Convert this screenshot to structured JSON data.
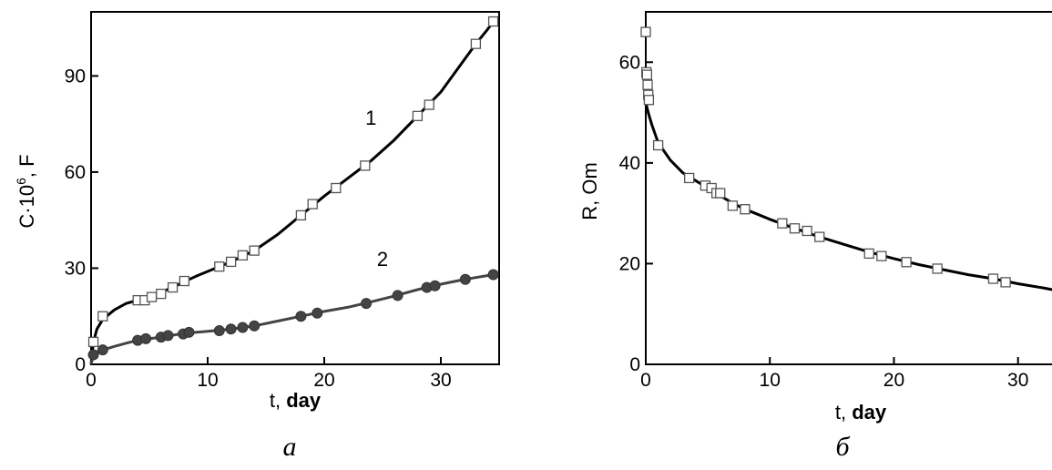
{
  "chart_data": [
    {
      "type": "line",
      "panel_label": "а",
      "xlabel": "t, ",
      "xlabel_unit": "day",
      "ylabel": "C·10",
      "ylabel_sup": "6",
      "ylabel_unit": ", F",
      "xlim": [
        0,
        35
      ],
      "ylim": [
        0,
        110
      ],
      "xticks": [
        0,
        10,
        20,
        30
      ],
      "yticks": [
        0,
        30,
        60,
        90
      ],
      "grid": false,
      "series": [
        {
          "name": "1",
          "marker": "open-square",
          "color": "#000000",
          "points": [
            [
              0.2,
              7
            ],
            [
              1,
              15
            ],
            [
              4,
              20
            ],
            [
              4.6,
              20
            ],
            [
              5.2,
              21
            ],
            [
              6,
              22
            ],
            [
              7,
              24
            ],
            [
              8,
              26
            ],
            [
              11,
              30.5
            ],
            [
              12,
              32
            ],
            [
              13,
              34
            ],
            [
              14,
              35.5
            ],
            [
              18,
              46.5
            ],
            [
              19,
              50
            ],
            [
              21,
              55
            ],
            [
              23.5,
              62
            ],
            [
              28,
              77.5
            ],
            [
              29,
              81
            ],
            [
              33,
              100
            ],
            [
              34.5,
              107
            ]
          ],
          "curve": [
            [
              0,
              0
            ],
            [
              0.2,
              7
            ],
            [
              0.5,
              11
            ],
            [
              1,
              14
            ],
            [
              2,
              17
            ],
            [
              3,
              19
            ],
            [
              4,
              20
            ],
            [
              5,
              21
            ],
            [
              6,
              22.5
            ],
            [
              7,
              24
            ],
            [
              8,
              25.8
            ],
            [
              9,
              27.5
            ],
            [
              10,
              29
            ],
            [
              11,
              30.5
            ],
            [
              12,
              32
            ],
            [
              13,
              33.8
            ],
            [
              14,
              35.5
            ],
            [
              16,
              40.5
            ],
            [
              18,
              46.5
            ],
            [
              20,
              52.5
            ],
            [
              22,
              58
            ],
            [
              24,
              63.5
            ],
            [
              26,
              70
            ],
            [
              28,
              77.5
            ],
            [
              30,
              85
            ],
            [
              32,
              95
            ],
            [
              33,
              100
            ],
            [
              34,
              104.5
            ],
            [
              34.5,
              107
            ]
          ],
          "label_at": [
            24,
            77
          ]
        },
        {
          "name": "2",
          "marker": "filled-circle",
          "color": "#444444",
          "points": [
            [
              0.2,
              3
            ],
            [
              1,
              4.5
            ],
            [
              4,
              7.5
            ],
            [
              4.7,
              8
            ],
            [
              6,
              8.5
            ],
            [
              6.6,
              9
            ],
            [
              7.9,
              9.5
            ],
            [
              8.4,
              10
            ],
            [
              11,
              10.5
            ],
            [
              12,
              11
            ],
            [
              13,
              11.5
            ],
            [
              14,
              12
            ],
            [
              18,
              15
            ],
            [
              19.4,
              16
            ],
            [
              23.6,
              19
            ],
            [
              26.3,
              21.5
            ],
            [
              28.8,
              24
            ],
            [
              29.5,
              24.5
            ],
            [
              32.1,
              26.5
            ],
            [
              34.5,
              28
            ]
          ],
          "curve": [
            [
              0,
              0
            ],
            [
              0.2,
              3
            ],
            [
              0.5,
              3.8
            ],
            [
              1,
              4.5
            ],
            [
              2,
              5.6
            ],
            [
              3,
              6.6
            ],
            [
              4,
              7.5
            ],
            [
              6,
              8.5
            ],
            [
              8,
              9.7
            ],
            [
              10,
              10.3
            ],
            [
              12,
              11
            ],
            [
              14,
              12
            ],
            [
              16,
              13.5
            ],
            [
              18,
              15
            ],
            [
              20,
              16.5
            ],
            [
              22,
              17.8
            ],
            [
              24,
              19.5
            ],
            [
              26,
              21.3
            ],
            [
              28,
              23.3
            ],
            [
              30,
              25
            ],
            [
              32,
              26.5
            ],
            [
              34.5,
              28
            ]
          ],
          "label_at": [
            25,
            33
          ]
        }
      ]
    },
    {
      "type": "line",
      "panel_label": "б",
      "xlabel": "t, ",
      "xlabel_unit": "day",
      "ylabel": "R, Om",
      "xlim": [
        0,
        34.5
      ],
      "ylim": [
        0,
        70
      ],
      "xticks": [
        0,
        10,
        20,
        30
      ],
      "yticks": [
        0,
        20,
        40,
        60
      ],
      "grid": false,
      "series": [
        {
          "marker": "open-square",
          "color": "#000000",
          "points": [
            [
              0,
              66
            ],
            [
              0.05,
              58
            ],
            [
              0.1,
              57.5
            ],
            [
              0.15,
              55.5
            ],
            [
              0.2,
              53.5
            ],
            [
              0.25,
              52.5
            ],
            [
              1,
              43.5
            ],
            [
              3.5,
              37
            ],
            [
              4.8,
              35.5
            ],
            [
              5.3,
              35
            ],
            [
              5.7,
              34
            ],
            [
              6,
              34
            ],
            [
              7,
              31.5
            ],
            [
              8,
              30.8
            ],
            [
              11,
              28
            ],
            [
              12,
              27
            ],
            [
              13,
              26.5
            ],
            [
              14,
              25.3
            ],
            [
              18,
              22
            ],
            [
              19,
              21.5
            ],
            [
              21,
              20.3
            ],
            [
              23.5,
              19
            ],
            [
              28,
              17
            ],
            [
              29,
              16.3
            ],
            [
              33,
              14.8
            ],
            [
              34.5,
              14
            ]
          ],
          "curve": [
            [
              0,
              52
            ],
            [
              0.2,
              50
            ],
            [
              0.5,
              47.5
            ],
            [
              1,
              44
            ],
            [
              2,
              40.5
            ],
            [
              3,
              38
            ],
            [
              4,
              36.5
            ],
            [
              5,
              35
            ],
            [
              6,
              33.5
            ],
            [
              7,
              32
            ],
            [
              8,
              30.8
            ],
            [
              9,
              29.8
            ],
            [
              10,
              28.8
            ],
            [
              12,
              27
            ],
            [
              14,
              25.3
            ],
            [
              16,
              23.8
            ],
            [
              18,
              22.3
            ],
            [
              20,
              21
            ],
            [
              22,
              19.8
            ],
            [
              24,
              18.8
            ],
            [
              26,
              17.8
            ],
            [
              28,
              17
            ],
            [
              30,
              16
            ],
            [
              32,
              15.2
            ],
            [
              34.5,
              14
            ]
          ]
        }
      ]
    }
  ]
}
